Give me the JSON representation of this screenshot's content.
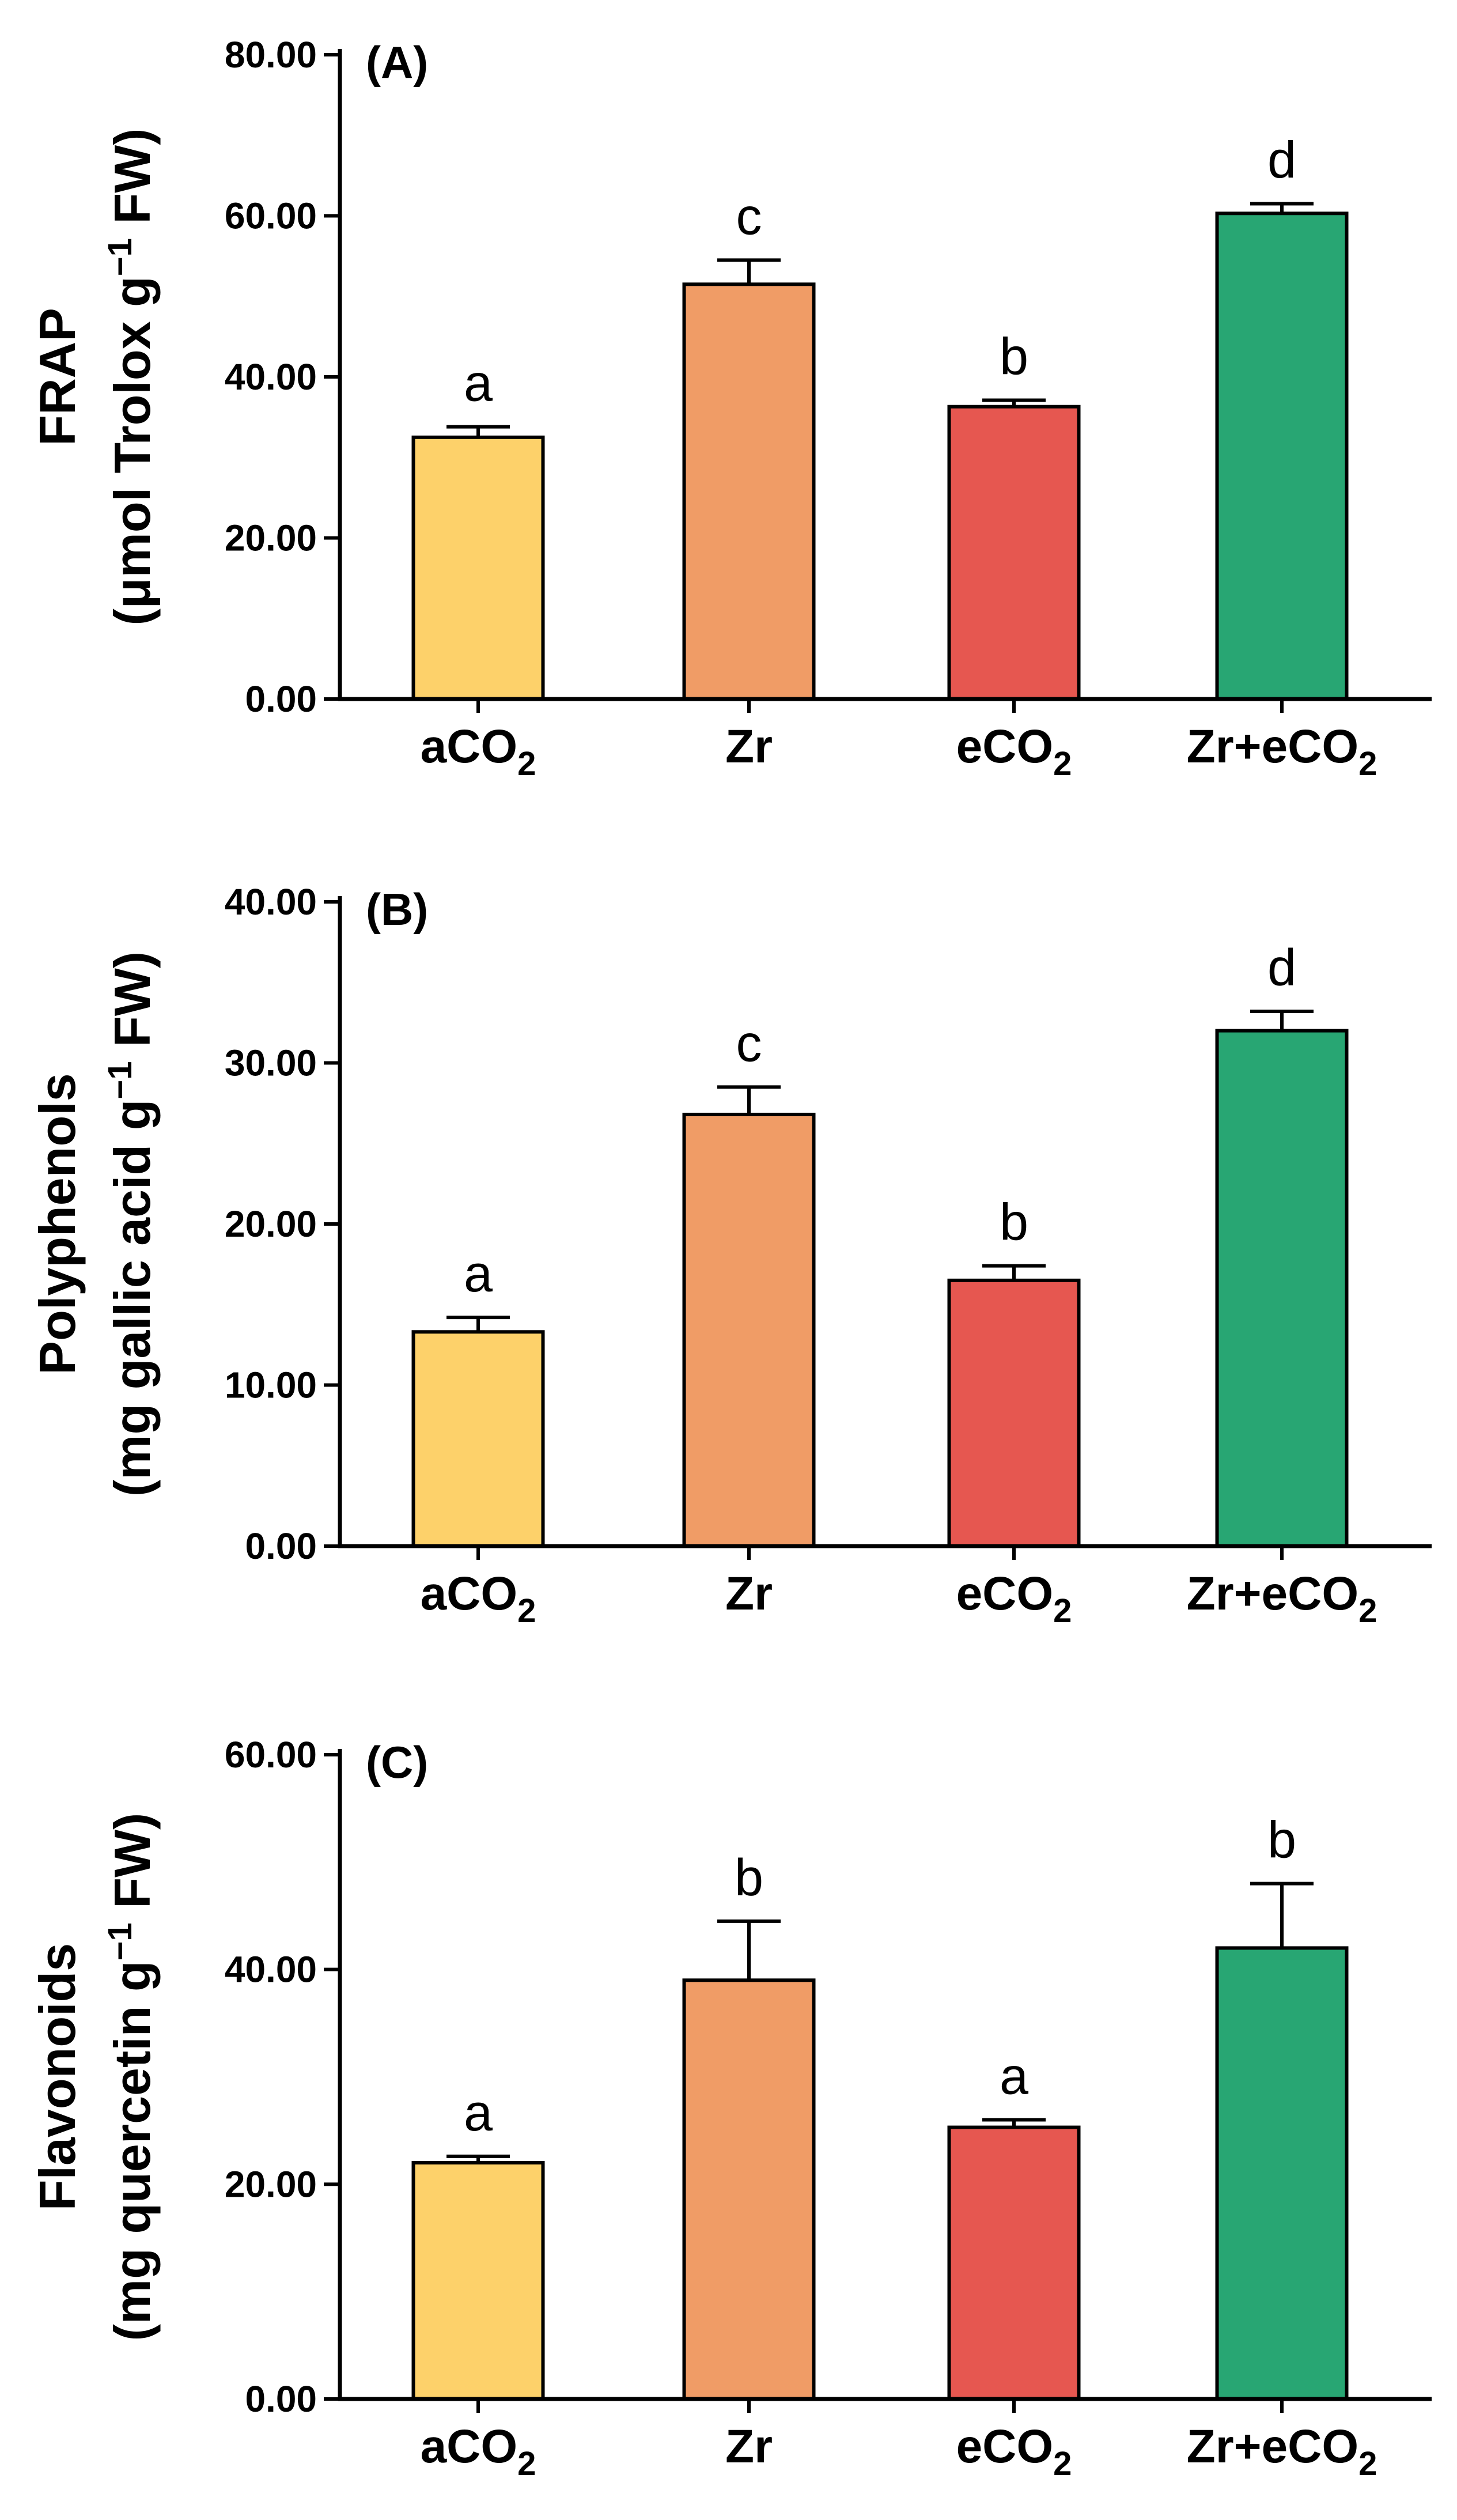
{
  "colors": {
    "aCO2": "#FDD16A",
    "Zr": "#F09C66",
    "eCO2": "#E65750",
    "Zr+eCO2": "#28A673",
    "axis": "#000000"
  },
  "chart_data": [
    {
      "type": "bar",
      "panel_label": "(A)",
      "ylabel_line1": "FRAP",
      "ylabel_line2_pre": "(μmol Trolox g",
      "ylabel_line2_sup": "−1",
      "ylabel_line2_post": " FW)",
      "categories": [
        {
          "pre": "aCO",
          "sub": "2"
        },
        {
          "pre": "Zr",
          "sub": ""
        },
        {
          "pre": "eCO",
          "sub": "2"
        },
        {
          "pre": "Zr+eCO",
          "sub": "2"
        }
      ],
      "category_keys": [
        "aCO2",
        "Zr",
        "eCO2",
        "Zr+eCO2"
      ],
      "values": [
        32.5,
        51.5,
        36.3,
        60.3
      ],
      "errors": [
        1.3,
        3.0,
        0.8,
        1.2
      ],
      "significance": [
        "a",
        "c",
        "b",
        "d"
      ],
      "ylim": [
        0,
        80
      ],
      "ticks": [
        0,
        20,
        40,
        60,
        80
      ],
      "tick_labels": [
        "0.00",
        "20.00",
        "40.00",
        "60.00",
        "80.00"
      ],
      "grid": false
    },
    {
      "type": "bar",
      "panel_label": "(B)",
      "ylabel_line1": "Polyphenols",
      "ylabel_line2_pre": "(mg gallic acid g",
      "ylabel_line2_sup": "−1",
      "ylabel_line2_post": " FW)",
      "categories": [
        {
          "pre": "aCO",
          "sub": "2"
        },
        {
          "pre": "Zr",
          "sub": ""
        },
        {
          "pre": "eCO",
          "sub": "2"
        },
        {
          "pre": "Zr+eCO",
          "sub": "2"
        }
      ],
      "category_keys": [
        "aCO2",
        "Zr",
        "eCO2",
        "Zr+eCO2"
      ],
      "values": [
        13.3,
        26.8,
        16.5,
        32.0
      ],
      "errors": [
        0.9,
        1.7,
        0.9,
        1.2
      ],
      "significance": [
        "a",
        "c",
        "b",
        "d"
      ],
      "ylim": [
        0,
        40
      ],
      "ticks": [
        0,
        10,
        20,
        30,
        40
      ],
      "tick_labels": [
        "0.00",
        "10.00",
        "20.00",
        "30.00",
        "40.00"
      ],
      "grid": false
    },
    {
      "type": "bar",
      "panel_label": "(C)",
      "ylabel_line1": "Flavonoids",
      "ylabel_line2_pre": "(mg quercetin g",
      "ylabel_line2_sup": "−1",
      "ylabel_line2_post": " FW)",
      "categories": [
        {
          "pre": "aCO",
          "sub": "2"
        },
        {
          "pre": "Zr",
          "sub": ""
        },
        {
          "pre": "eCO",
          "sub": "2"
        },
        {
          "pre": "Zr+eCO",
          "sub": "2"
        }
      ],
      "category_keys": [
        "aCO2",
        "Zr",
        "eCO2",
        "Zr+eCO2"
      ],
      "values": [
        22.0,
        39.0,
        25.3,
        42.0
      ],
      "errors": [
        0.6,
        5.5,
        0.7,
        6.0
      ],
      "significance": [
        "a",
        "b",
        "a",
        "b"
      ],
      "ylim": [
        0,
        60
      ],
      "ticks": [
        0,
        20,
        40,
        60
      ],
      "tick_labels": [
        "0.00",
        "20.00",
        "40.00",
        "60.00"
      ],
      "grid": false
    }
  ]
}
